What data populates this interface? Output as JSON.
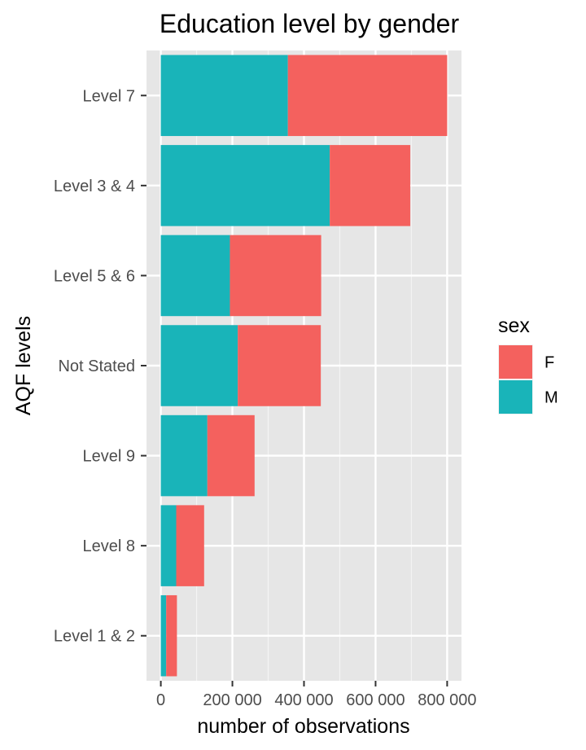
{
  "chart_data": {
    "type": "bar",
    "orientation": "horizontal",
    "stacked": true,
    "title": "Education level by gender",
    "xlabel": "number of observations",
    "ylabel": "AQF levels",
    "xlim": [
      -40000,
      840000
    ],
    "x_ticks": [
      0,
      200000,
      400000,
      600000,
      800000
    ],
    "x_tick_labels": [
      "0",
      "200 000",
      "400 000",
      "600 000",
      "800 000"
    ],
    "categories": [
      "Level 7",
      "Level 3 & 4",
      "Level 5 & 6",
      "Not Stated",
      "Level 9",
      "Level 8",
      "Level 1 & 2"
    ],
    "series": [
      {
        "name": "M",
        "color": "#19b4b9",
        "values": [
          355000,
          472000,
          193000,
          215000,
          130000,
          43000,
          15000
        ]
      },
      {
        "name": "F",
        "color": "#f4615e",
        "values": [
          445000,
          225000,
          255000,
          232000,
          132000,
          78000,
          30000
        ]
      }
    ],
    "grid": true,
    "background": "#e6e6e6",
    "legend": {
      "title": "sex",
      "position": "right",
      "items": [
        {
          "label": "F",
          "color": "#f4615e"
        },
        {
          "label": "M",
          "color": "#19b4b9"
        }
      ]
    }
  }
}
